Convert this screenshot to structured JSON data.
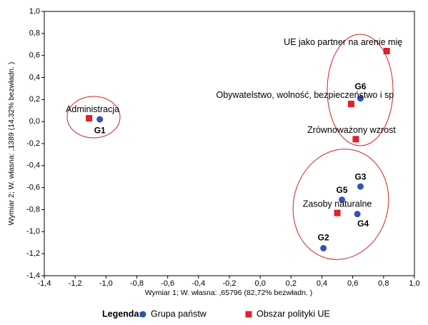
{
  "chart_data": {
    "type": "scatter",
    "x_label": "Wymiar   1; W. własna:  ,65796 (82,72% bezwładn. )",
    "y_label": "Wymiar   2; W. własna:  ,1389 (14,32% bezwładn. )",
    "legend_title": "Legenda:",
    "xlim": [
      -1.4,
      1.0
    ],
    "ylim": [
      -1.4,
      1.0
    ],
    "xticks": [
      {
        "value": -1.4,
        "label": "-1,4"
      },
      {
        "value": -1.2,
        "label": "-1,2"
      },
      {
        "value": -1.0,
        "label": "-1,0"
      },
      {
        "value": -0.8,
        "label": "-0,8"
      },
      {
        "value": -0.6,
        "label": "-0,6"
      },
      {
        "value": -0.4,
        "label": "-0,4"
      },
      {
        "value": -0.2,
        "label": "-0,2"
      },
      {
        "value": 0,
        "label": "0,0"
      },
      {
        "value": 0.2,
        "label": "0,2"
      },
      {
        "value": 0.4,
        "label": "0,4"
      },
      {
        "value": 0.6,
        "label": "0,6"
      },
      {
        "value": 0.8,
        "label": "0,8"
      },
      {
        "value": 1.0,
        "label": "1,0"
      }
    ],
    "yticks": [
      {
        "value": -1.4,
        "label": "-1,4"
      },
      {
        "value": -1.2,
        "label": "-1,2"
      },
      {
        "value": -1.0,
        "label": "-1,0"
      },
      {
        "value": -0.8,
        "label": "-0,8"
      },
      {
        "value": -0.6,
        "label": "-0,6"
      },
      {
        "value": -0.4,
        "label": "-0,4"
      },
      {
        "value": -0.2,
        "label": "-0,2"
      },
      {
        "value": 0,
        "label": "0,0"
      },
      {
        "value": 0.2,
        "label": "0,2"
      },
      {
        "value": 0.4,
        "label": "0,4"
      },
      {
        "value": 0.6,
        "label": "0,6"
      },
      {
        "value": 0.8,
        "label": "0,8"
      },
      {
        "value": 1.0,
        "label": "1,0"
      }
    ],
    "series": [
      {
        "name": "Grupa państw",
        "color": "#2f55b4",
        "marker": "circle",
        "labels": [
          "G1",
          "G6",
          "G3",
          "G5",
          "G4",
          "G2"
        ],
        "x": [
          -1.04,
          0.65,
          0.65,
          0.53,
          0.63,
          0.41
        ],
        "values": [
          0.02,
          0.21,
          -0.59,
          -0.71,
          -0.84,
          -1.15
        ]
      },
      {
        "name": "Obszar polityki UE",
        "color": "#e0202a",
        "marker": "square",
        "labels": [
          "Administracja",
          "UE jako partner na arenie mię",
          "Obywatelstwo, wolność, bezpieczeństwo i sp",
          "Zrównoważony wzrost",
          "Zasoby naturalne"
        ],
        "x": [
          -1.11,
          0.82,
          0.59,
          0.62,
          0.5
        ],
        "values": [
          0.03,
          0.64,
          0.16,
          -0.16,
          -0.83
        ]
      }
    ]
  }
}
